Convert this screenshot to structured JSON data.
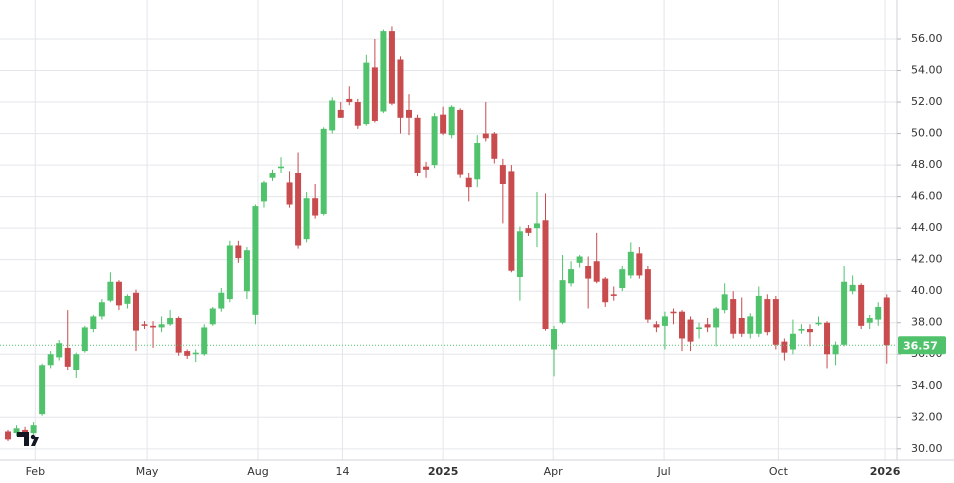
{
  "chart_data": {
    "type": "candlestick",
    "up_color": "#4fc26b",
    "down_color": "#c84b4e",
    "grid": true,
    "xlim": [
      -0.94,
      104.2
    ],
    "xticks": [
      {
        "value": 3.2,
        "label": "Feb"
      },
      {
        "value": 16.3,
        "label": "May"
      },
      {
        "value": 29.3,
        "label": "Aug"
      },
      {
        "value": 39.2,
        "label": "14"
      },
      {
        "value": 51,
        "label": "2025"
      },
      {
        "value": 63.9,
        "label": "Apr"
      },
      {
        "value": 76.9,
        "label": "Jul"
      },
      {
        "value": 90.3,
        "label": "Oct"
      },
      {
        "value": 102.8,
        "label": "2026"
      }
    ],
    "ylim": [
      29.1,
      57.84
    ],
    "yticks": [
      {
        "value": 30,
        "label": "30.00"
      },
      {
        "value": 32,
        "label": "32.00"
      },
      {
        "value": 34,
        "label": "34.00"
      },
      {
        "value": 36,
        "label": "36.00"
      },
      {
        "value": 38,
        "label": "38.00"
      },
      {
        "value": 40,
        "label": "40.00"
      },
      {
        "value": 42,
        "label": "42.00"
      },
      {
        "value": 44,
        "label": "44.00"
      },
      {
        "value": 46,
        "label": "46.00"
      },
      {
        "value": 48,
        "label": "48.00"
      },
      {
        "value": 50,
        "label": "50.00"
      },
      {
        "value": 52,
        "label": "52.00"
      },
      {
        "value": 54,
        "label": "54.00"
      },
      {
        "value": 56,
        "label": "56.00"
      }
    ],
    "last_price": 36.57,
    "open": [
      31.1,
      31.0,
      31.2,
      31.0,
      32.2,
      35.3,
      35.8,
      36.4,
      35.0,
      36.2,
      37.6,
      38.4,
      39.4,
      40.6,
      39.2,
      39.9,
      37.9,
      37.8,
      37.7,
      37.9,
      38.3,
      36.2,
      36.0,
      36.0,
      37.9,
      38.9,
      39.5,
      42.9,
      40.0,
      38.5,
      45.7,
      47.2,
      47.8,
      46.9,
      47.5,
      43.3,
      45.9,
      44.9,
      50.2,
      51.5,
      52.2,
      52.0,
      50.6,
      54.2,
      51.4,
      56.5,
      54.7,
      51.5,
      51.0,
      47.9,
      48.0,
      51.2,
      49.9,
      51.5,
      47.2,
      47.1,
      50.0,
      50.0,
      48.0,
      47.6,
      40.9,
      44.0,
      44.0,
      44.5,
      36.3,
      38.0,
      40.5,
      41.8,
      41.6,
      41.9,
      40.8,
      39.8,
      40.2,
      41.0,
      42.4,
      41.4,
      37.9,
      37.8,
      38.7,
      38.7,
      38.2,
      37.6,
      37.9,
      37.7,
      38.8,
      39.5,
      38.3,
      37.3,
      37.3,
      39.5,
      39.5,
      36.8,
      36.3,
      37.5,
      37.6,
      37.9,
      38.0,
      36.0,
      36.6,
      40.0,
      40.4,
      38.0,
      38.2,
      39.6
    ],
    "high": [
      31.2,
      31.5,
      31.4,
      31.7,
      35.4,
      36.2,
      36.9,
      38.8,
      36.1,
      37.8,
      38.5,
      39.5,
      41.2,
      40.7,
      39.8,
      40.1,
      38.1,
      38.1,
      38.4,
      38.8,
      38.4,
      36.3,
      36.3,
      37.9,
      39.0,
      40.2,
      43.2,
      43.2,
      42.8,
      45.5,
      47.0,
      47.7,
      48.5,
      47.6,
      48.8,
      46.3,
      46.8,
      50.4,
      52.3,
      52.0,
      53.0,
      52.2,
      55.0,
      56.0,
      56.6,
      56.8,
      54.9,
      52.5,
      51.2,
      48.2,
      51.3,
      51.7,
      51.8,
      51.6,
      47.5,
      49.9,
      52.0,
      50.1,
      48.4,
      48.0,
      44.1,
      44.2,
      46.3,
      46.2,
      37.8,
      42.3,
      41.9,
      42.3,
      42.2,
      43.7,
      40.9,
      40.3,
      41.6,
      43.1,
      42.8,
      41.6,
      38.1,
      38.7,
      38.9,
      38.8,
      38.4,
      38.0,
      38.3,
      39.0,
      40.5,
      40.0,
      39.6,
      38.6,
      40.3,
      39.8,
      39.7,
      37.0,
      38.2,
      37.9,
      37.9,
      38.4,
      38.1,
      36.8,
      41.6,
      41.0,
      40.5,
      38.5,
      39.3,
      39.8
    ],
    "low": [
      30.5,
      30.8,
      30.2,
      30.9,
      32.1,
      35.1,
      35.6,
      35.0,
      34.5,
      36.1,
      37.4,
      38.2,
      39.3,
      38.8,
      38.9,
      36.2,
      37.6,
      36.4,
      37.4,
      37.8,
      35.9,
      35.7,
      35.5,
      35.9,
      37.8,
      38.7,
      39.3,
      41.8,
      39.5,
      37.9,
      45.3,
      47.0,
      47.5,
      45.3,
      42.7,
      43.1,
      44.6,
      44.8,
      50.0,
      51.0,
      51.8,
      50.3,
      50.5,
      50.7,
      51.3,
      51.8,
      50.0,
      49.9,
      47.3,
      47.2,
      47.8,
      49.9,
      49.7,
      47.2,
      45.7,
      46.6,
      49.5,
      48.1,
      44.3,
      41.2,
      39.4,
      43.5,
      42.8,
      37.5,
      34.6,
      37.9,
      40.3,
      41.5,
      38.9,
      40.5,
      39.0,
      39.4,
      40.0,
      40.8,
      40.8,
      38.0,
      37.4,
      36.3,
      37.9,
      36.2,
      36.2,
      37.0,
      37.4,
      36.5,
      38.6,
      37.0,
      37.1,
      37.0,
      37.1,
      37.2,
      36.3,
      35.6,
      36.0,
      37.3,
      36.5,
      37.8,
      35.1,
      35.3,
      36.5,
      39.8,
      37.6,
      37.6,
      37.8,
      35.4
    ],
    "close": [
      30.6,
      31.3,
      30.8,
      31.5,
      35.3,
      36.0,
      36.7,
      35.2,
      36.0,
      37.7,
      38.4,
      39.3,
      40.6,
      39.1,
      39.7,
      37.5,
      37.8,
      37.7,
      37.9,
      38.3,
      36.1,
      35.9,
      36.1,
      37.7,
      38.9,
      39.9,
      42.9,
      42.1,
      42.6,
      45.4,
      46.9,
      47.5,
      47.9,
      45.5,
      42.9,
      45.9,
      44.8,
      50.3,
      52.1,
      51.0,
      52.0,
      50.5,
      54.5,
      50.8,
      56.5,
      51.9,
      51.0,
      51.0,
      47.5,
      47.7,
      51.1,
      50.0,
      51.7,
      47.4,
      46.6,
      49.4,
      49.7,
      48.4,
      46.8,
      41.3,
      43.8,
      43.7,
      44.3,
      37.6,
      37.6,
      40.7,
      41.4,
      42.2,
      40.8,
      40.6,
      39.3,
      39.7,
      41.4,
      42.5,
      41.0,
      38.2,
      37.7,
      38.4,
      38.6,
      37.0,
      36.8,
      37.7,
      37.7,
      38.9,
      39.8,
      37.3,
      37.3,
      38.4,
      39.7,
      37.4,
      36.6,
      36.1,
      37.3,
      37.6,
      37.4,
      38.0,
      36.0,
      36.6,
      40.6,
      40.4,
      37.8,
      38.3,
      39.0,
      36.57
    ]
  }
}
